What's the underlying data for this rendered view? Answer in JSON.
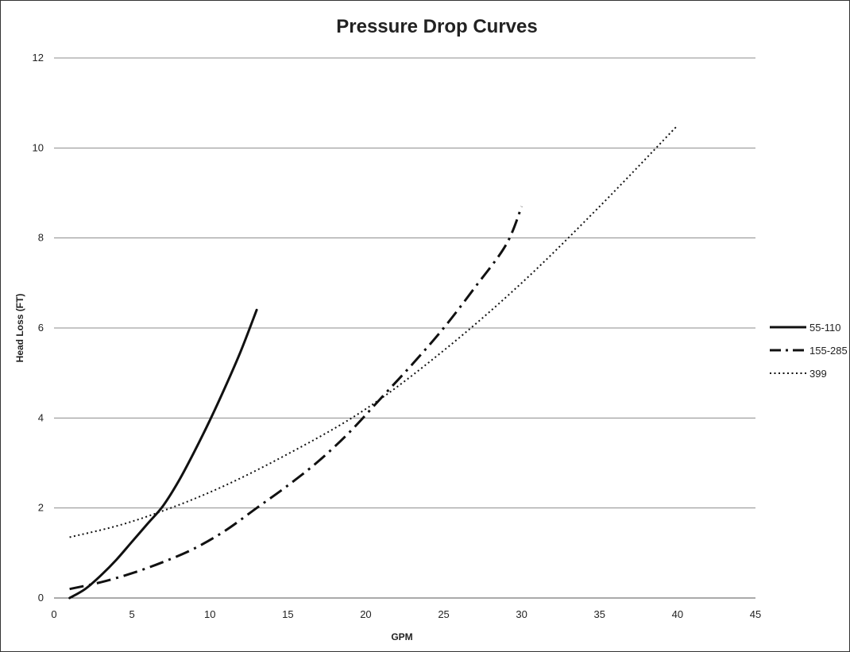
{
  "chart_data": {
    "type": "line",
    "title": "Pressure Drop Curves",
    "xlabel": "GPM",
    "ylabel": "Head Loss (FT)",
    "xlim": [
      0,
      45
    ],
    "ylim": [
      0,
      12
    ],
    "xticks": [
      0,
      5,
      10,
      15,
      20,
      25,
      30,
      35,
      40,
      45
    ],
    "yticks": [
      0,
      2,
      4,
      6,
      8,
      10,
      12
    ],
    "grid": "horizontal",
    "legend_position": "right",
    "series": [
      {
        "name": "55-110",
        "style": "solid",
        "points": [
          [
            1,
            0.0
          ],
          [
            2,
            0.2
          ],
          [
            3,
            0.5
          ],
          [
            4,
            0.85
          ],
          [
            5,
            1.25
          ],
          [
            6,
            1.65
          ],
          [
            7,
            2.05
          ],
          [
            8,
            2.6
          ],
          [
            9,
            3.25
          ],
          [
            10,
            3.95
          ],
          [
            11,
            4.7
          ],
          [
            12,
            5.5
          ],
          [
            13,
            6.4
          ]
        ]
      },
      {
        "name": "155-285",
        "style": "dash-dot",
        "points": [
          [
            1,
            0.2
          ],
          [
            3,
            0.35
          ],
          [
            5,
            0.55
          ],
          [
            7,
            0.8
          ],
          [
            9,
            1.1
          ],
          [
            11,
            1.5
          ],
          [
            13,
            2.0
          ],
          [
            15,
            2.5
          ],
          [
            17,
            3.05
          ],
          [
            19,
            3.7
          ],
          [
            21,
            4.45
          ],
          [
            23,
            5.2
          ],
          [
            25,
            6.0
          ],
          [
            27,
            6.9
          ],
          [
            29,
            7.85
          ],
          [
            30,
            8.7
          ]
        ]
      },
      {
        "name": "399",
        "style": "dotted",
        "points": [
          [
            1,
            1.35
          ],
          [
            5,
            1.7
          ],
          [
            10,
            2.35
          ],
          [
            15,
            3.2
          ],
          [
            20,
            4.2
          ],
          [
            25,
            5.5
          ],
          [
            30,
            7.0
          ],
          [
            35,
            8.7
          ],
          [
            40,
            10.5
          ]
        ]
      }
    ]
  }
}
